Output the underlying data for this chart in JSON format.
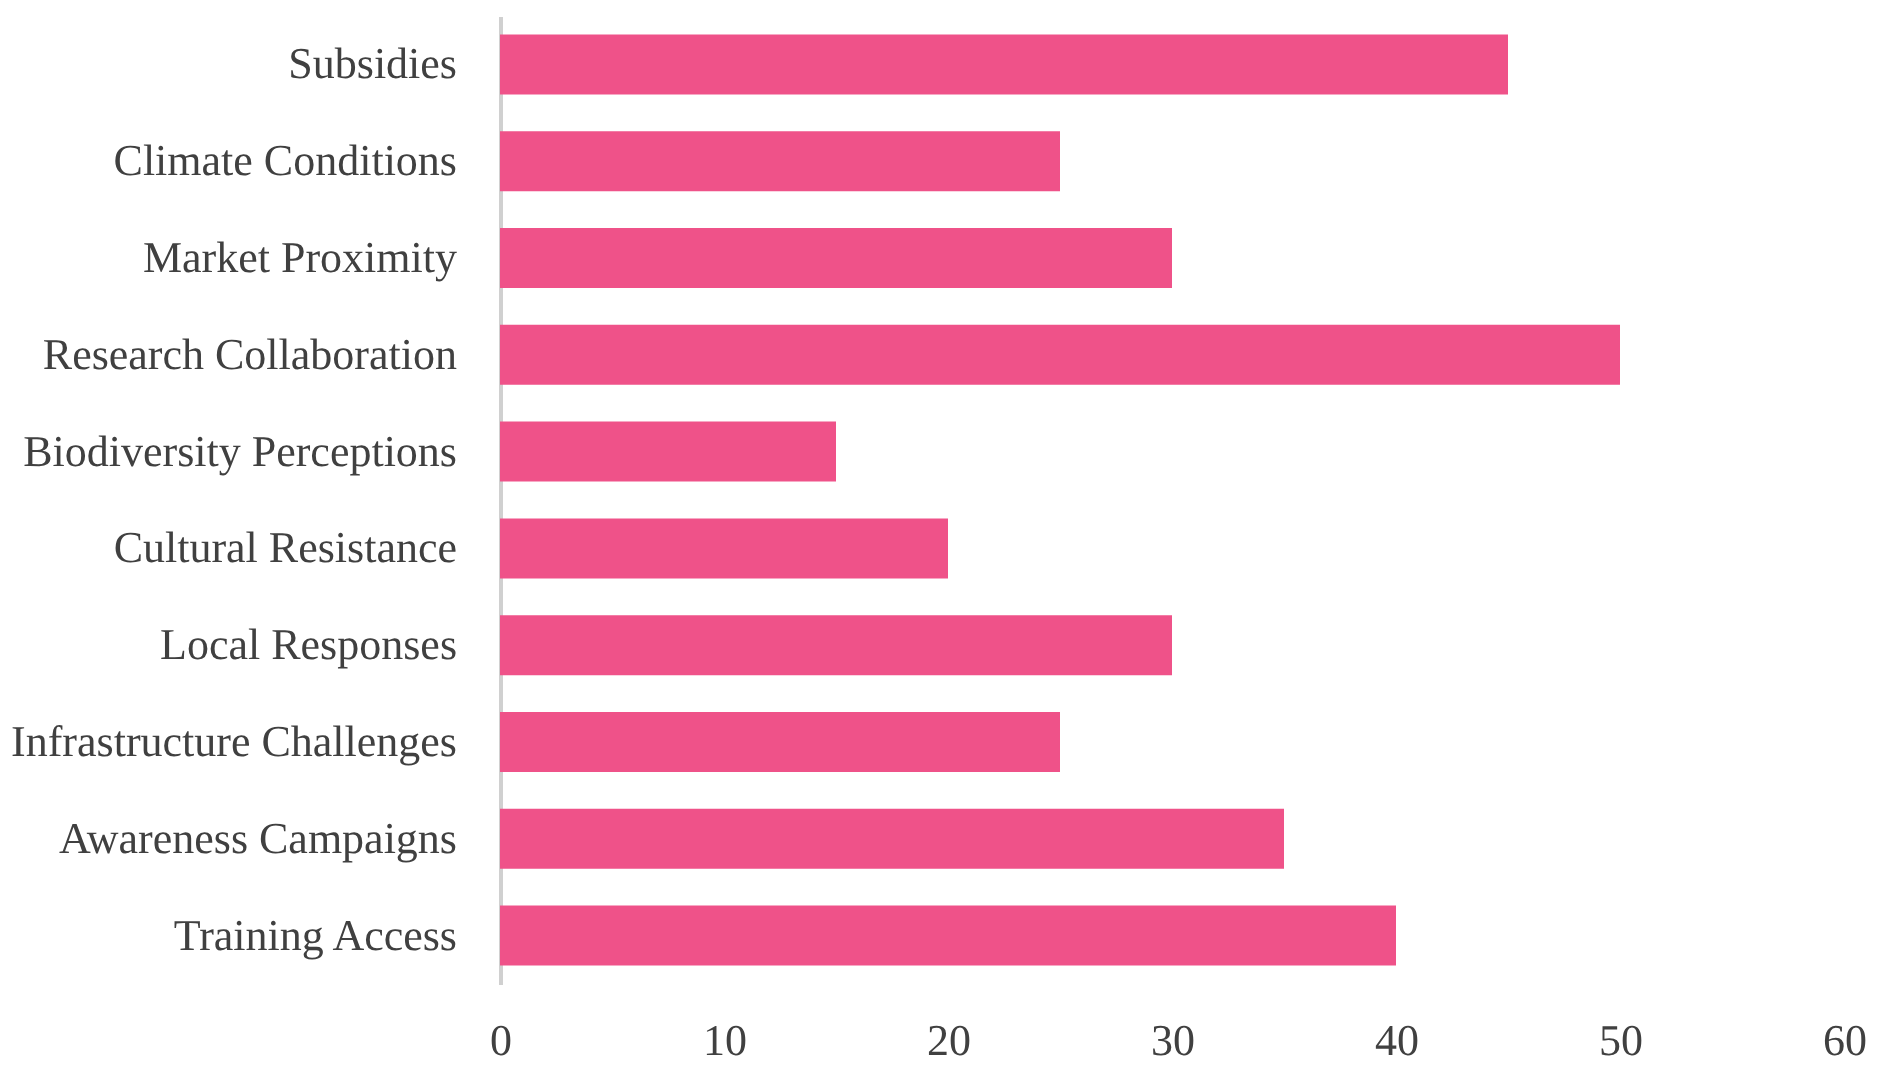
{
  "chart_data": {
    "type": "bar",
    "orientation": "horizontal",
    "categories": [
      "Subsidies",
      "Climate Conditions",
      "Market Proximity",
      "Research Collaboration",
      "Biodiversity Perceptions",
      "Cultural Resistance",
      "Local Responses",
      "Infrastructure Challenges",
      "Awareness Campaigns",
      "Training Access"
    ],
    "values": [
      45,
      25,
      30,
      50,
      15,
      20,
      30,
      25,
      35,
      40
    ],
    "color": "#ef5289",
    "xlim": [
      0,
      60
    ],
    "xticks": [
      0,
      10,
      20,
      30,
      40,
      50,
      60
    ],
    "grid": false
  }
}
